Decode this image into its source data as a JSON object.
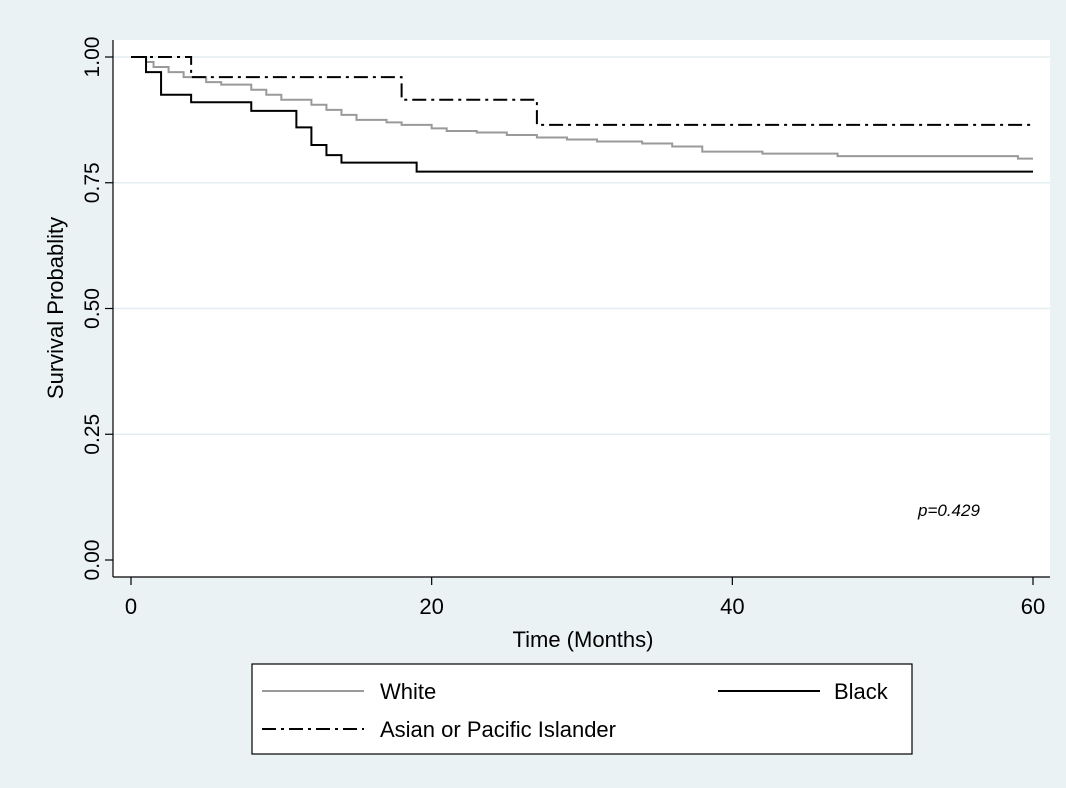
{
  "chart_data": {
    "type": "line",
    "subtype": "kaplan-meier step",
    "xlabel": "Time (Months)",
    "ylabel": "Survival Probablity",
    "xlim": [
      0,
      60
    ],
    "ylim": [
      0,
      1
    ],
    "xticks": [
      0,
      20,
      40,
      60
    ],
    "yticks": [
      0.0,
      0.25,
      0.5,
      0.75,
      1.0
    ],
    "ytick_labels": [
      "0.00",
      "0.25",
      "0.50",
      "0.75",
      "1.00"
    ],
    "grid": "horizontal",
    "legend_position": "bottom",
    "annotation": "p=0.429",
    "series": [
      {
        "name": "White",
        "style": "solid",
        "color": "#9a9a9a",
        "points": [
          [
            0,
            1.0
          ],
          [
            1,
            0.99
          ],
          [
            1.5,
            0.98
          ],
          [
            2.5,
            0.97
          ],
          [
            3.5,
            0.96
          ],
          [
            5,
            0.95
          ],
          [
            6,
            0.945
          ],
          [
            8,
            0.935
          ],
          [
            9,
            0.925
          ],
          [
            10,
            0.915
          ],
          [
            12,
            0.905
          ],
          [
            13,
            0.895
          ],
          [
            14,
            0.885
          ],
          [
            15,
            0.875
          ],
          [
            17,
            0.87
          ],
          [
            18,
            0.865
          ],
          [
            20,
            0.858
          ],
          [
            21,
            0.853
          ],
          [
            23,
            0.85
          ],
          [
            25,
            0.845
          ],
          [
            27,
            0.84
          ],
          [
            29,
            0.836
          ],
          [
            31,
            0.832
          ],
          [
            34,
            0.828
          ],
          [
            36,
            0.822
          ],
          [
            38,
            0.812
          ],
          [
            42,
            0.808
          ],
          [
            47,
            0.803
          ],
          [
            59,
            0.798
          ],
          [
            60,
            0.798
          ]
        ]
      },
      {
        "name": "Black",
        "style": "solid",
        "color": "#000000",
        "points": [
          [
            0,
            1.0
          ],
          [
            1,
            0.97
          ],
          [
            2,
            0.925
          ],
          [
            4,
            0.91
          ],
          [
            8,
            0.893
          ],
          [
            11,
            0.86
          ],
          [
            12,
            0.825
          ],
          [
            13,
            0.805
          ],
          [
            14,
            0.79
          ],
          [
            19,
            0.772
          ],
          [
            60,
            0.772
          ]
        ]
      },
      {
        "name": "Asian or Pacific Islander",
        "style": "dashdot",
        "color": "#000000",
        "points": [
          [
            0,
            1.0
          ],
          [
            4,
            0.96
          ],
          [
            18,
            0.915
          ],
          [
            27,
            0.865
          ],
          [
            60,
            0.865
          ]
        ]
      }
    ]
  }
}
